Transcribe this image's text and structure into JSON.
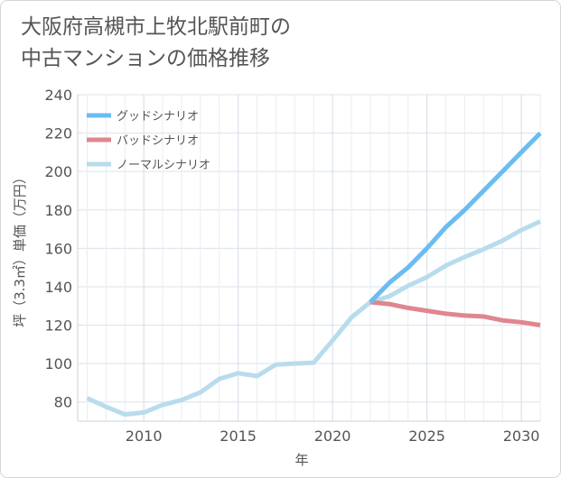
{
  "title_line1": "大阪府高槻市上牧北駅前町の",
  "title_line2": "中古マンションの価格推移",
  "chart_data": {
    "type": "line",
    "xlabel": "年",
    "ylabel": "坪（3.3㎡）単価（万円）",
    "xlim": [
      2006.5,
      2031
    ],
    "ylim": [
      70,
      240
    ],
    "x_ticks": [
      2010,
      2015,
      2020,
      2025,
      2030
    ],
    "y_ticks": [
      80,
      100,
      120,
      140,
      160,
      180,
      200,
      220,
      240
    ],
    "grid": true,
    "legend_position": "top-left",
    "series": [
      {
        "name": "グッドシナリオ",
        "color": "#6bbcf0",
        "x": [
          2022,
          2023,
          2024,
          2025,
          2026,
          2027,
          2028,
          2029,
          2030,
          2031
        ],
        "y": [
          132,
          142,
          150,
          160,
          171,
          180,
          190,
          200,
          210,
          220
        ]
      },
      {
        "name": "バッドシナリオ",
        "color": "#e0868f",
        "x": [
          2022,
          2023,
          2024,
          2025,
          2026,
          2027,
          2028,
          2029,
          2030,
          2031
        ],
        "y": [
          132,
          131,
          129,
          127.5,
          126,
          125,
          124.5,
          122.5,
          121.5,
          120
        ]
      },
      {
        "name": "ノーマルシナリオ",
        "color": "#b9dced",
        "x": [
          2007,
          2008,
          2009,
          2010,
          2011,
          2012,
          2013,
          2014,
          2015,
          2016,
          2017,
          2018,
          2019,
          2020,
          2021,
          2022,
          2023,
          2024,
          2025,
          2026,
          2027,
          2028,
          2029,
          2030,
          2031
        ],
        "y": [
          82,
          77.5,
          73.5,
          74.5,
          78.5,
          81,
          85,
          92,
          95,
          93.5,
          99.5,
          100,
          100.5,
          112,
          124,
          132,
          135,
          140.5,
          145,
          151,
          155.5,
          159.5,
          164,
          169.5,
          174
        ]
      }
    ]
  }
}
